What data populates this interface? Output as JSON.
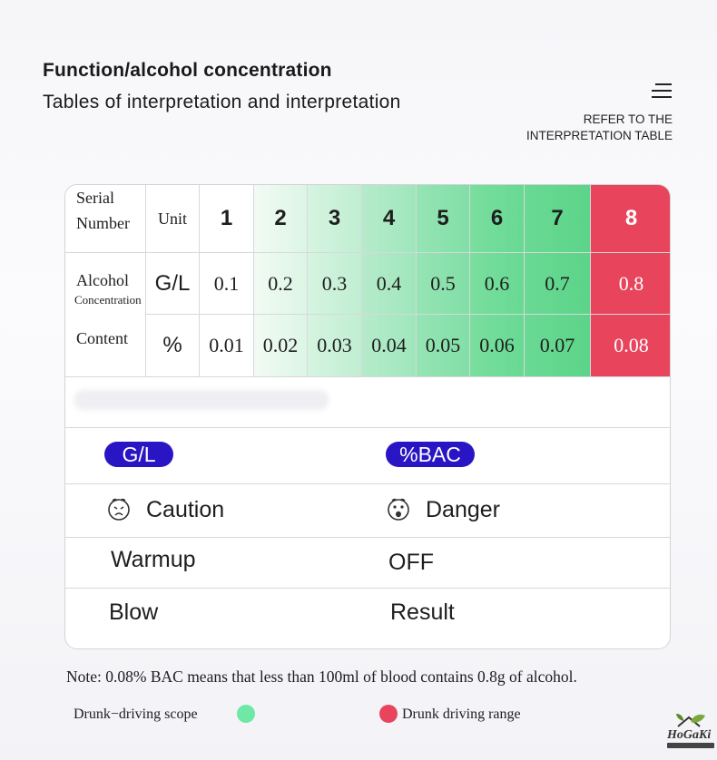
{
  "header": {
    "title": "Function/alcohol concentration",
    "subtitle": "Tables of interpretation and interpretation",
    "refer_line1": "REFER TO THE",
    "refer_line2": "INTERPRETATION TABLE"
  },
  "table": {
    "serial_label_1": "Serial",
    "serial_label_2": "Number",
    "unit_label": "Unit",
    "serial_numbers": [
      "1",
      "2",
      "3",
      "4",
      "5",
      "6",
      "7",
      "8"
    ],
    "row_alcohol": "Alcohol",
    "row_concentration": "Concentration",
    "row_content": "Content",
    "gl_unit": "G/L",
    "pct_unit": "%",
    "gl_values": [
      "0.1",
      "0.2",
      "0.3",
      "0.4",
      "0.5",
      "0.6",
      "0.7",
      "0.8"
    ],
    "pct_values": [
      "0.01",
      "0.02",
      "0.03",
      "0.04",
      "0.05",
      "0.06",
      "0.07",
      "0.08"
    ]
  },
  "display": {
    "gl_pill": "G/L",
    "bac_pill": "%BAC",
    "caution": "Caution",
    "danger": "Danger",
    "warmup": "Warmup",
    "off": "OFF",
    "blow": "Blow",
    "result": "Result"
  },
  "footer": {
    "note": "Note: 0.08% BAC means that less than 100ml of blood contains 0.8g of alcohol.",
    "legend_green": "Drunk−driving  scope",
    "legend_red": "Drunk driving range",
    "logo": "HoGaKi"
  },
  "colors": {
    "green_dot": "#6ee8a4",
    "red_dot": "#e8455d",
    "pill_blue": "#2a15c4"
  }
}
